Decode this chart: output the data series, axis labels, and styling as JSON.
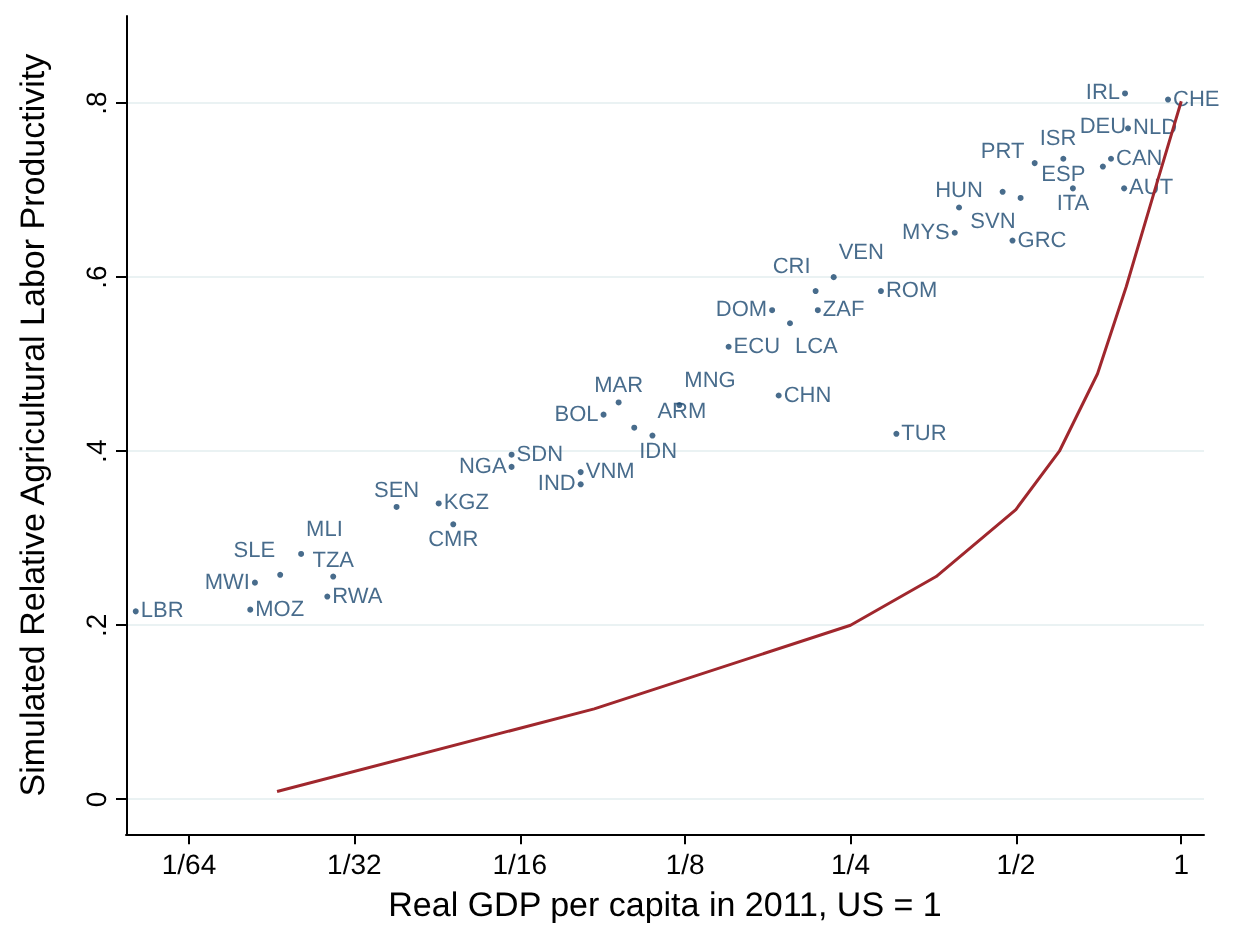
{
  "chart_data": {
    "type": "scatter",
    "xlabel": "Real GDP per capita in 2011, US = 1",
    "ylabel": "Simulated Relative Agricultural Labor Productivity",
    "log": "x",
    "grid": "y",
    "xlim": [
      0.012,
      1.1
    ],
    "xticks": [
      {
        "value": 0.015625,
        "label": "1/64"
      },
      {
        "value": 0.03125,
        "label": "1/32"
      },
      {
        "value": 0.0625,
        "label": "1/16"
      },
      {
        "value": 0.125,
        "label": "1/8"
      },
      {
        "value": 0.25,
        "label": "1/4"
      },
      {
        "value": 0.5,
        "label": "1/2"
      },
      {
        "value": 1,
        "label": "1"
      }
    ],
    "ylim": [
      -0.04,
      0.9
    ],
    "yticks": [
      {
        "value": 0,
        "label": "0"
      },
      {
        "value": 0.2,
        "label": ".2"
      },
      {
        "value": 0.4,
        "label": ".4"
      },
      {
        "value": 0.6,
        "label": ".6"
      },
      {
        "value": 0.8,
        "label": ".8"
      }
    ],
    "series": [
      {
        "color": "#1a476f",
        "marker": "circle",
        "x": [
          0.0125,
          0.0202,
          0.0206,
          0.0229,
          0.0279,
          0.0286,
          0.025,
          0.0373,
          0.0445,
          0.0473,
          0.0604,
          0.0604,
          0.0807,
          0.0807,
          0.0888,
          0.0946,
          0.101,
          0.109,
          0.122,
          0.15,
          0.185,
          0.303,
          0.194,
          0.18,
          0.218,
          0.216,
          0.233,
          0.284,
          0.493,
          0.387,
          0.394,
          0.473,
          0.51,
          0.635,
          0.787,
          0.541,
          0.61,
          0.745,
          0.72,
          0.8,
          0.79,
          0.946
        ],
        "values": [
          0.216,
          0.218,
          0.249,
          0.258,
          0.233,
          0.256,
          0.282,
          0.336,
          0.34,
          0.316,
          0.396,
          0.382,
          0.376,
          0.362,
          0.442,
          0.456,
          0.427,
          0.418,
          0.453,
          0.52,
          0.464,
          0.42,
          0.547,
          0.562,
          0.562,
          0.584,
          0.6,
          0.584,
          0.642,
          0.651,
          0.68,
          0.698,
          0.691,
          0.702,
          0.702,
          0.731,
          0.736,
          0.736,
          0.727,
          0.771,
          0.811,
          0.804
        ],
        "value_labels": [
          "LBR",
          "MOZ",
          "MWI",
          "SLE",
          "RWA",
          "TZA",
          "MLI",
          "SEN",
          "KGZ",
          "CMR",
          "SDN",
          "NGA",
          "VNM",
          "IND",
          "BOL",
          "MAR",
          "IDN",
          "ARM",
          "MNG",
          "ECU",
          "CHN",
          "TUR",
          "LCA",
          "DOM",
          "ZAF",
          "CRI",
          "VEN",
          "ROM",
          "GRC",
          "MYS",
          "HUN",
          "PRT",
          "SVN",
          "ITA",
          "AUT",
          "ISR",
          "ESP",
          "CAN",
          "DEU",
          "NLD",
          "IRL",
          "CHE"
        ]
      },
      {
        "type": "line",
        "marker": "none",
        "color": "#a0272d",
        "x": [
          0.0226,
          0.0854,
          0.25,
          0.358,
          0.5,
          0.6,
          0.704,
          0.794,
          0.895,
          1
        ],
        "values": [
          0.009,
          0.104,
          0.2,
          0.256,
          0.333,
          0.4,
          0.489,
          0.589,
          0.7,
          0.802
        ]
      }
    ]
  }
}
